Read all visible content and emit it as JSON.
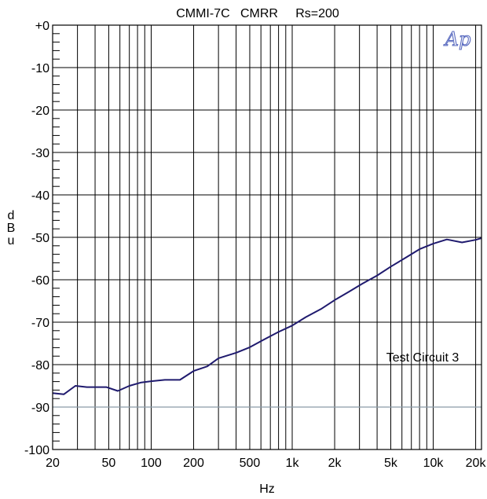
{
  "chart_data": {
    "type": "line",
    "title": "CMMI-7C   CMRR     Rs=200",
    "xlabel": "Hz",
    "ylabel": "dBu",
    "xscale": "log",
    "xlim": [
      20,
      22000
    ],
    "ylim": [
      -100,
      0
    ],
    "grid": true,
    "x_ticks": [
      20,
      50,
      100,
      200,
      500,
      1000,
      2000,
      5000,
      10000,
      20000
    ],
    "x_tick_labels": [
      "20",
      "50",
      "100",
      "200",
      "500",
      "1k",
      "2k",
      "5k",
      "10k",
      "20k"
    ],
    "y_ticks": [
      0,
      -10,
      -20,
      -30,
      -40,
      -50,
      -60,
      -70,
      -80,
      -90,
      -100
    ],
    "y_tick_labels": [
      "+0",
      "-10",
      "-20",
      "-30",
      "-40",
      "-50",
      "-60",
      "-70",
      "-80",
      "-90",
      "-100"
    ],
    "reference_line": {
      "y": -90,
      "color": "#8a9aa8"
    },
    "annotation": "Test Circuit 3",
    "logo": "Ap",
    "series": [
      {
        "color": "#1f1a6e",
        "x": [
          20,
          24,
          29,
          35,
          40,
          48,
          58,
          70,
          85,
          100,
          125,
          160,
          200,
          250,
          300,
          400,
          500,
          630,
          800,
          1000,
          1250,
          1600,
          2000,
          2500,
          3150,
          4000,
          5000,
          6300,
          8000,
          10000,
          12500,
          16000,
          20000,
          22000
        ],
        "y": [
          -86.7,
          -87.0,
          -85.0,
          -85.3,
          -85.3,
          -85.3,
          -86.2,
          -85.0,
          -84.2,
          -83.9,
          -83.6,
          -83.6,
          -81.5,
          -80.4,
          -78.5,
          -77.2,
          -75.9,
          -74.1,
          -72.3,
          -70.8,
          -68.8,
          -66.9,
          -64.8,
          -62.9,
          -60.9,
          -59.0,
          -56.9,
          -54.9,
          -52.8,
          -51.5,
          -50.5,
          -51.2,
          -50.6,
          -50.2
        ]
      }
    ]
  }
}
